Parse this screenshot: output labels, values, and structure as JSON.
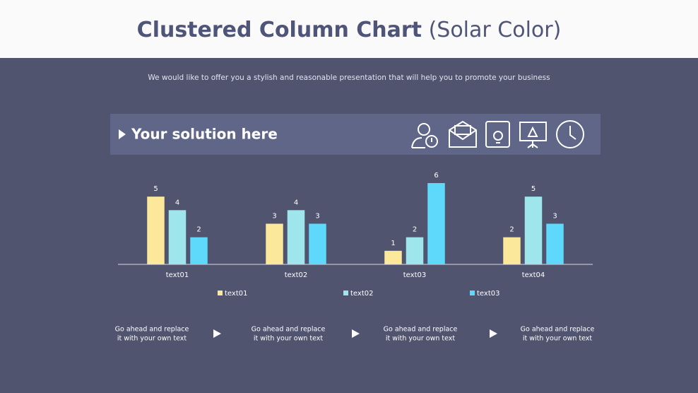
{
  "title": "Clustered Column Chart",
  "title_suffix": "(Solar Color)",
  "subtitle": "We would like to offer you a stylish and reasonable presentation that will help you to promote your business",
  "banner": "Your solution here",
  "chart_data": {
    "type": "bar",
    "categories": [
      "text01",
      "text02",
      "text03",
      "text04"
    ],
    "series": [
      {
        "name": "text01",
        "color": "#fbe89b",
        "values": [
          5,
          3,
          1,
          2
        ]
      },
      {
        "name": "text02",
        "color": "#9ee6ec",
        "values": [
          4,
          4,
          2,
          5
        ]
      },
      {
        "name": "text03",
        "color": "#5fd9fb",
        "values": [
          2,
          3,
          6,
          3
        ]
      }
    ],
    "ylim": [
      0,
      6
    ]
  },
  "footer": [
    [
      "Go ahead and replace",
      "it with your own text"
    ],
    [
      "Go ahead and replace",
      "it with your own text"
    ],
    [
      "Go ahead and replace",
      "it with your own text"
    ],
    [
      "Go ahead and replace",
      "it with your own text"
    ]
  ]
}
